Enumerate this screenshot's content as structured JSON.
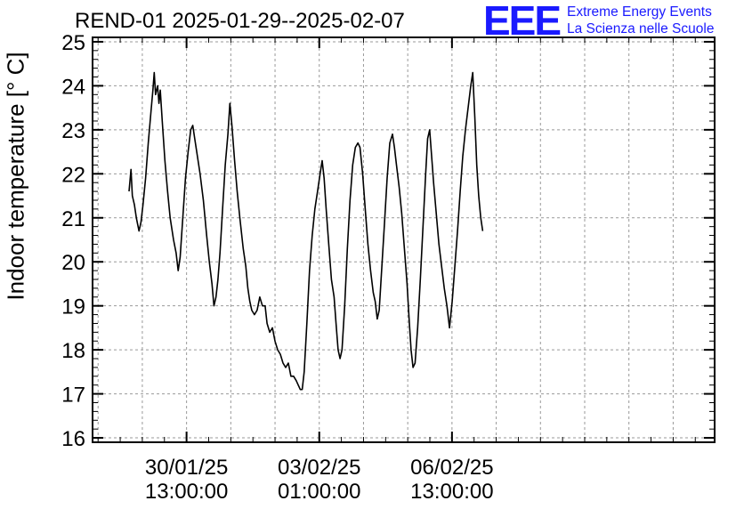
{
  "header": {
    "title": "REND-01 2025-01-29--2025-02-07",
    "logo_mark": "EEE",
    "logo_line1": "Extreme Energy Events",
    "logo_line2": "La Scienza nelle Scuole"
  },
  "chart_data": {
    "type": "line",
    "title": "REND-01 2025-01-29--2025-02-07",
    "xlabel": "",
    "ylabel": "Indoor temperature [° C]",
    "ylim": [
      15.9,
      25.1
    ],
    "yticks": [
      16,
      17,
      18,
      19,
      20,
      21,
      22,
      23,
      24,
      25
    ],
    "xlim": [
      0,
      9.375
    ],
    "xticks": [
      {
        "x": 1.4167,
        "label_line1": "30/01/25",
        "label_line2": "13:00:00"
      },
      {
        "x": 3.4167,
        "label_line1": "03/02/25",
        "label_line2": "01:00:00"
      },
      {
        "x": 5.4167,
        "label_line1": "06/02/25",
        "label_line2": "13:00:00"
      }
    ],
    "grid": true,
    "line_color": "#000000",
    "series": [
      {
        "name": "",
        "points": [
          [
            0.55,
            21.6
          ],
          [
            0.58,
            22.1
          ],
          [
            0.6,
            21.5
          ],
          [
            0.63,
            21.3
          ],
          [
            0.66,
            21.0
          ],
          [
            0.7,
            20.7
          ],
          [
            0.73,
            20.9
          ],
          [
            0.76,
            21.3
          ],
          [
            0.8,
            21.9
          ],
          [
            0.84,
            22.7
          ],
          [
            0.88,
            23.4
          ],
          [
            0.91,
            23.9
          ],
          [
            0.93,
            24.3
          ],
          [
            0.95,
            23.8
          ],
          [
            0.98,
            24.0
          ],
          [
            1.0,
            23.6
          ],
          [
            1.02,
            23.9
          ],
          [
            1.05,
            23.2
          ],
          [
            1.09,
            22.3
          ],
          [
            1.13,
            21.6
          ],
          [
            1.17,
            21.0
          ],
          [
            1.22,
            20.5
          ],
          [
            1.26,
            20.2
          ],
          [
            1.29,
            19.8
          ],
          [
            1.32,
            20.1
          ],
          [
            1.36,
            21.0
          ],
          [
            1.4,
            21.9
          ],
          [
            1.44,
            22.5
          ],
          [
            1.48,
            23.0
          ],
          [
            1.51,
            23.1
          ],
          [
            1.54,
            22.8
          ],
          [
            1.58,
            22.4
          ],
          [
            1.62,
            22.0
          ],
          [
            1.67,
            21.4
          ],
          [
            1.72,
            20.6
          ],
          [
            1.76,
            20.0
          ],
          [
            1.8,
            19.5
          ],
          [
            1.83,
            19.0
          ],
          [
            1.86,
            19.2
          ],
          [
            1.89,
            19.6
          ],
          [
            1.92,
            20.2
          ],
          [
            1.96,
            21.2
          ],
          [
            2.0,
            22.2
          ],
          [
            2.04,
            22.9
          ],
          [
            2.07,
            23.6
          ],
          [
            2.1,
            23.1
          ],
          [
            2.14,
            22.3
          ],
          [
            2.18,
            21.6
          ],
          [
            2.22,
            21.0
          ],
          [
            2.27,
            20.3
          ],
          [
            2.31,
            19.9
          ],
          [
            2.34,
            19.4
          ],
          [
            2.37,
            19.1
          ],
          [
            2.4,
            18.9
          ],
          [
            2.44,
            18.8
          ],
          [
            2.48,
            18.9
          ],
          [
            2.52,
            19.2
          ],
          [
            2.56,
            19.0
          ],
          [
            2.6,
            19.0
          ],
          [
            2.63,
            18.6
          ],
          [
            2.67,
            18.4
          ],
          [
            2.71,
            18.5
          ],
          [
            2.75,
            18.2
          ],
          [
            2.79,
            18.0
          ],
          [
            2.83,
            17.9
          ],
          [
            2.87,
            17.7
          ],
          [
            2.91,
            17.6
          ],
          [
            2.95,
            17.7
          ],
          [
            2.99,
            17.4
          ],
          [
            3.03,
            17.4
          ],
          [
            3.07,
            17.3
          ],
          [
            3.1,
            17.2
          ],
          [
            3.13,
            17.1
          ],
          [
            3.16,
            17.1
          ],
          [
            3.19,
            17.5
          ],
          [
            3.23,
            18.6
          ],
          [
            3.27,
            19.8
          ],
          [
            3.31,
            20.6
          ],
          [
            3.35,
            21.2
          ],
          [
            3.39,
            21.6
          ],
          [
            3.43,
            22.0
          ],
          [
            3.46,
            22.3
          ],
          [
            3.49,
            21.9
          ],
          [
            3.52,
            21.2
          ],
          [
            3.56,
            20.4
          ],
          [
            3.6,
            19.6
          ],
          [
            3.64,
            19.2
          ],
          [
            3.67,
            18.6
          ],
          [
            3.7,
            18.0
          ],
          [
            3.73,
            17.8
          ],
          [
            3.76,
            18.0
          ],
          [
            3.8,
            19.0
          ],
          [
            3.84,
            20.3
          ],
          [
            3.88,
            21.4
          ],
          [
            3.92,
            22.2
          ],
          [
            3.96,
            22.6
          ],
          [
            4.0,
            22.7
          ],
          [
            4.03,
            22.6
          ],
          [
            4.07,
            22.0
          ],
          [
            4.11,
            21.2
          ],
          [
            4.15,
            20.4
          ],
          [
            4.19,
            19.8
          ],
          [
            4.23,
            19.3
          ],
          [
            4.26,
            19.1
          ],
          [
            4.29,
            18.7
          ],
          [
            4.32,
            18.9
          ],
          [
            4.36,
            19.9
          ],
          [
            4.4,
            20.9
          ],
          [
            4.44,
            21.9
          ],
          [
            4.48,
            22.7
          ],
          [
            4.52,
            22.9
          ],
          [
            4.55,
            22.6
          ],
          [
            4.58,
            22.2
          ],
          [
            4.62,
            21.7
          ],
          [
            4.66,
            21.1
          ],
          [
            4.7,
            20.3
          ],
          [
            4.74,
            19.5
          ],
          [
            4.77,
            18.7
          ],
          [
            4.8,
            18.0
          ],
          [
            4.83,
            17.6
          ],
          [
            4.86,
            17.7
          ],
          [
            4.9,
            18.5
          ],
          [
            4.94,
            19.6
          ],
          [
            4.98,
            20.8
          ],
          [
            5.02,
            22.0
          ],
          [
            5.05,
            22.8
          ],
          [
            5.08,
            23.0
          ],
          [
            5.11,
            22.4
          ],
          [
            5.14,
            21.8
          ],
          [
            5.18,
            21.1
          ],
          [
            5.22,
            20.4
          ],
          [
            5.26,
            19.9
          ],
          [
            5.3,
            19.4
          ],
          [
            5.34,
            19.0
          ],
          [
            5.38,
            18.5
          ],
          [
            5.42,
            19.1
          ],
          [
            5.46,
            19.9
          ],
          [
            5.5,
            20.7
          ],
          [
            5.54,
            21.6
          ],
          [
            5.58,
            22.4
          ],
          [
            5.62,
            23.0
          ],
          [
            5.66,
            23.5
          ],
          [
            5.7,
            24.0
          ],
          [
            5.73,
            24.3
          ],
          [
            5.76,
            23.3
          ],
          [
            5.79,
            22.2
          ],
          [
            5.82,
            21.5
          ],
          [
            5.85,
            21.0
          ],
          [
            5.88,
            20.7
          ]
        ]
      }
    ]
  }
}
